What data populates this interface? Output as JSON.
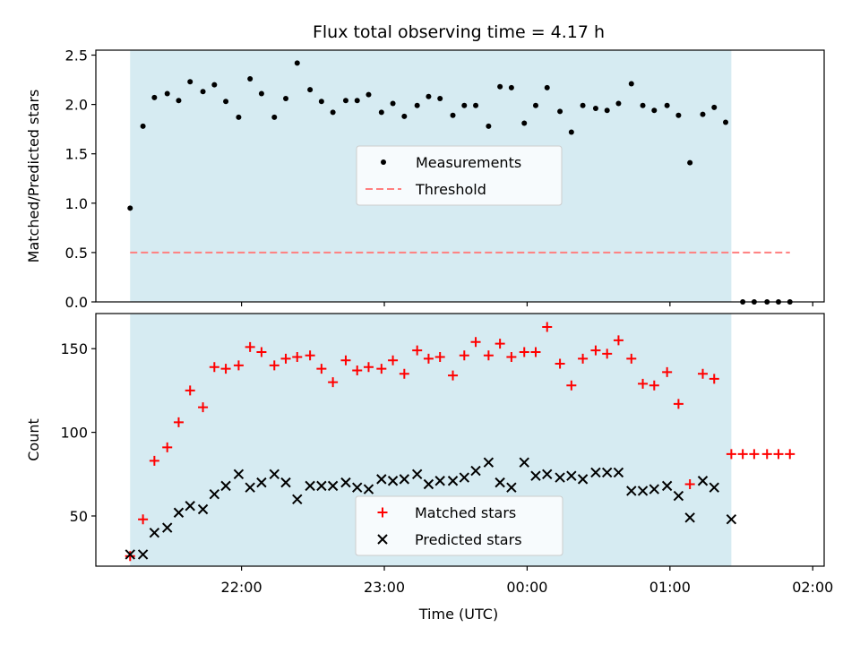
{
  "chart_data": {
    "title": "Flux total observing time = 4.17 h",
    "xlabel": "Time (UTC)",
    "x_tick_labels": [
      "22:00",
      "23:00",
      "00:00",
      "01:00",
      "02:00"
    ],
    "x_tick_hours": [
      22,
      23,
      24,
      25,
      26
    ],
    "xlim_hours": [
      20.98,
      26.08
    ],
    "observing_window_hours": [
      21.22,
      25.43
    ],
    "colors": {
      "window": "#add8e6",
      "measurements": "#000000",
      "threshold": "#ff7f7f",
      "matched": "#ff0000",
      "predicted": "#000000"
    },
    "panels": [
      {
        "type": "scatter",
        "ylabel": "Matched/Predicted stars",
        "ylim": [
          0,
          2.55
        ],
        "y_ticks": [
          0.0,
          0.5,
          1.0,
          1.5,
          2.0,
          2.5
        ],
        "y_tick_labels": [
          "0.0",
          "0.5",
          "1.0",
          "1.5",
          "2.0",
          "2.5"
        ],
        "legend_position": "center",
        "series": [
          {
            "name": "Measurements",
            "marker": "dot",
            "x": [
              21.22,
              21.31,
              21.39,
              21.48,
              21.56,
              21.64,
              21.73,
              21.81,
              21.89,
              21.98,
              22.06,
              22.14,
              22.23,
              22.31,
              22.39,
              22.48,
              22.56,
              22.64,
              22.73,
              22.81,
              22.89,
              22.98,
              23.06,
              23.14,
              23.23,
              23.31,
              23.39,
              23.48,
              23.56,
              23.64,
              23.73,
              23.81,
              23.89,
              23.98,
              24.06,
              24.14,
              24.23,
              24.31,
              24.39,
              24.48,
              24.56,
              24.64,
              24.73,
              24.81,
              24.89,
              24.98,
              25.06,
              25.14,
              25.23,
              25.31,
              25.39,
              25.51,
              25.59,
              25.68,
              25.76,
              25.84
            ],
            "y": [
              0.95,
              1.78,
              2.07,
              2.11,
              2.04,
              2.23,
              2.13,
              2.2,
              2.03,
              1.87,
              2.26,
              2.11,
              1.87,
              2.06,
              2.42,
              2.15,
              2.03,
              1.92,
              2.04,
              2.04,
              2.1,
              1.92,
              2.01,
              1.88,
              1.99,
              2.08,
              2.06,
              1.89,
              1.99,
              1.99,
              1.78,
              2.18,
              2.17,
              1.81,
              1.99,
              2.17,
              1.93,
              1.72,
              1.99,
              1.96,
              1.94,
              2.01,
              2.21,
              1.99,
              1.94,
              1.99,
              1.89,
              1.41,
              1.9,
              1.97,
              1.82,
              0.0,
              0.0,
              0.0,
              0.0,
              0.0
            ]
          },
          {
            "name": "Threshold",
            "marker": "dashed-line",
            "x": [
              21.22,
              25.84
            ],
            "y": [
              0.5,
              0.5
            ]
          }
        ]
      },
      {
        "type": "scatter",
        "ylabel": "Count",
        "ylim": [
          20,
          171
        ],
        "y_ticks": [
          50,
          100,
          150
        ],
        "y_tick_labels": [
          "50",
          "100",
          "150"
        ],
        "legend_position": "lower center",
        "series": [
          {
            "name": "Matched stars",
            "marker": "plus",
            "x": [
              21.22,
              21.31,
              21.39,
              21.48,
              21.56,
              21.64,
              21.73,
              21.81,
              21.89,
              21.98,
              22.06,
              22.14,
              22.23,
              22.31,
              22.39,
              22.48,
              22.56,
              22.64,
              22.73,
              22.81,
              22.89,
              22.98,
              23.06,
              23.14,
              23.23,
              23.31,
              23.39,
              23.48,
              23.56,
              23.64,
              23.73,
              23.81,
              23.89,
              23.98,
              24.06,
              24.14,
              24.23,
              24.31,
              24.39,
              24.48,
              24.56,
              24.64,
              24.73,
              24.81,
              24.89,
              24.98,
              25.06,
              25.14,
              25.23,
              25.31,
              25.43,
              25.51,
              25.59,
              25.68,
              25.76,
              25.84
            ],
            "y": [
              26,
              48,
              83,
              91,
              106,
              125,
              115,
              139,
              138,
              140,
              151,
              148,
              140,
              144,
              145,
              146,
              138,
              130,
              143,
              137,
              139,
              138,
              143,
              135,
              149,
              144,
              145,
              134,
              146,
              154,
              146,
              153,
              145,
              148,
              148,
              163,
              141,
              128,
              144,
              149,
              147,
              155,
              144,
              129,
              128,
              136,
              117,
              69,
              135,
              132,
              87,
              87,
              87,
              87,
              87,
              87
            ]
          },
          {
            "name": "Predicted stars",
            "marker": "x",
            "x": [
              21.22,
              21.31,
              21.39,
              21.48,
              21.56,
              21.64,
              21.73,
              21.81,
              21.89,
              21.98,
              22.06,
              22.14,
              22.23,
              22.31,
              22.39,
              22.48,
              22.56,
              22.64,
              22.73,
              22.81,
              22.89,
              22.98,
              23.06,
              23.14,
              23.23,
              23.31,
              23.39,
              23.48,
              23.56,
              23.64,
              23.73,
              23.81,
              23.89,
              23.98,
              24.06,
              24.14,
              24.23,
              24.31,
              24.39,
              24.48,
              24.56,
              24.64,
              24.73,
              24.81,
              24.89,
              24.98,
              25.06,
              25.14,
              25.23,
              25.31,
              25.43
            ],
            "y": [
              27,
              27,
              40,
              43,
              52,
              56,
              54,
              63,
              68,
              75,
              67,
              70,
              75,
              70,
              60,
              68,
              68,
              68,
              70,
              67,
              66,
              72,
              71,
              72,
              75,
              69,
              71,
              71,
              73,
              77,
              82,
              70,
              67,
              82,
              74,
              75,
              73,
              74,
              72,
              76,
              76,
              76,
              65,
              65,
              66,
              68,
              62,
              49,
              71,
              67,
              48
            ]
          }
        ]
      }
    ]
  }
}
